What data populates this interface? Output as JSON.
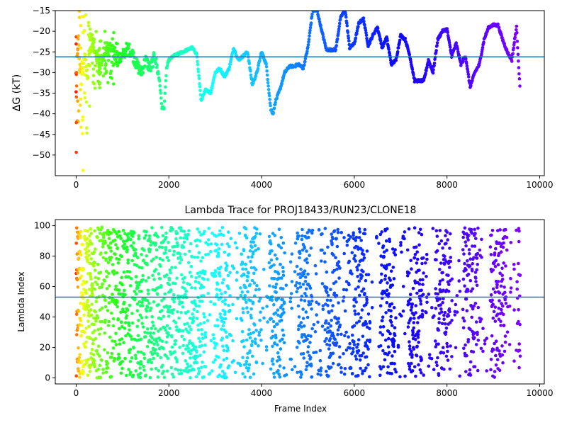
{
  "figure": {
    "colormap": "rainbow",
    "colorscale_direction": "early frames red/orange, late frames violet"
  },
  "chart_data": [
    {
      "type": "scatter",
      "title": "",
      "xlabel": "",
      "ylabel": "ΔG (kT)",
      "xlim": [
        -450,
        10100
      ],
      "ylim": [
        -55,
        -15
      ],
      "xticks": [
        0,
        2000,
        4000,
        6000,
        8000,
        10000
      ],
      "xtick_labels": [
        "0",
        "2000",
        "4000",
        "6000",
        "8000",
        "10000"
      ],
      "yticks": [
        -50,
        -45,
        -40,
        -35,
        -30,
        -25,
        -20,
        -15
      ],
      "ytick_labels": [
        "−50",
        "−45",
        "−40",
        "−35",
        "−30",
        "−25",
        "−20",
        "−15"
      ],
      "hline": {
        "value": -26.2,
        "color": "#1f77b4"
      },
      "grid": false,
      "series": [
        {
          "x": [
            0,
            50,
            100,
            150,
            200,
            250,
            300,
            400,
            500,
            600,
            700,
            800,
            900,
            1000,
            1100,
            1200,
            1300,
            1400,
            1500,
            1600,
            1700,
            1800,
            1850,
            1900,
            1950,
            2000,
            2100,
            2200,
            2300,
            2400,
            2500,
            2600,
            2700,
            2800,
            2900,
            3000,
            3100,
            3200,
            3300,
            3400,
            3500,
            3600,
            3700,
            3800,
            3900,
            4000,
            4100,
            4200,
            4250,
            4300,
            4400,
            4500,
            4600,
            4700,
            4800,
            4900,
            5000,
            5100,
            5200,
            5300,
            5400,
            5500,
            5600,
            5700,
            5800,
            5900,
            6000,
            6100,
            6200,
            6300,
            6400,
            6500,
            6600,
            6700,
            6800,
            6900,
            7000,
            7100,
            7200,
            7300,
            7400,
            7500,
            7600,
            7700,
            7800,
            7900,
            8000,
            8100,
            8200,
            8300,
            8400,
            8500,
            8600,
            8700,
            8800,
            8900,
            9000,
            9100,
            9200,
            9300,
            9400,
            9500,
            9580
          ],
          "y": [
            -30,
            -22,
            -35,
            -28,
            -25,
            -32,
            -20,
            -24,
            -28,
            -26,
            -24,
            -25,
            -27,
            -26,
            -24,
            -25,
            -28,
            -30,
            -27,
            -29,
            -26,
            -32,
            -38.5,
            -38.5,
            -29,
            -27,
            -26,
            -25.5,
            -25,
            -24.5,
            -24,
            -25.5,
            -37,
            -34,
            -35,
            -30,
            -29,
            -31,
            -29,
            -24,
            -27,
            -26,
            -25,
            -33,
            -30,
            -25,
            -28,
            -39,
            -40,
            -37,
            -34,
            -30,
            -28.5,
            -28.5,
            -28,
            -29,
            -24,
            -15,
            -15,
            -20,
            -24.5,
            -24.5,
            -24.5,
            -17,
            -14.5,
            -24,
            -23,
            -18,
            -17,
            -23.5,
            -21,
            -19,
            -24,
            -21.5,
            -28,
            -27,
            -21,
            -22,
            -26,
            -32,
            -32,
            -32,
            -27,
            -30,
            -22,
            -20,
            -19.5,
            -26,
            -23,
            -28,
            -26,
            -33.5,
            -30,
            -28,
            -22,
            -19,
            -18.5,
            -18.5,
            -22,
            -25,
            -27,
            -19,
            -35
          ]
        }
      ]
    },
    {
      "type": "scatter",
      "title": "Lambda Trace for PROJ18433/RUN23/CLONE18",
      "xlabel": "Frame Index",
      "ylabel": "Lambda Index",
      "xlim": [
        -450,
        10100
      ],
      "ylim": [
        -4,
        104
      ],
      "xticks": [
        0,
        2000,
        4000,
        6000,
        8000,
        10000
      ],
      "xtick_labels": [
        "0",
        "2000",
        "4000",
        "6000",
        "8000",
        "10000"
      ],
      "yticks": [
        0,
        20,
        40,
        60,
        80,
        100
      ],
      "ytick_labels": [
        "0",
        "20",
        "40",
        "60",
        "80",
        "100"
      ],
      "hline": {
        "value": 53,
        "color": "#1f77b4"
      },
      "grid": false,
      "series": [
        {
          "x_range": [
            0,
            9580
          ],
          "y_range": [
            0,
            99
          ]
        }
      ]
    }
  ]
}
